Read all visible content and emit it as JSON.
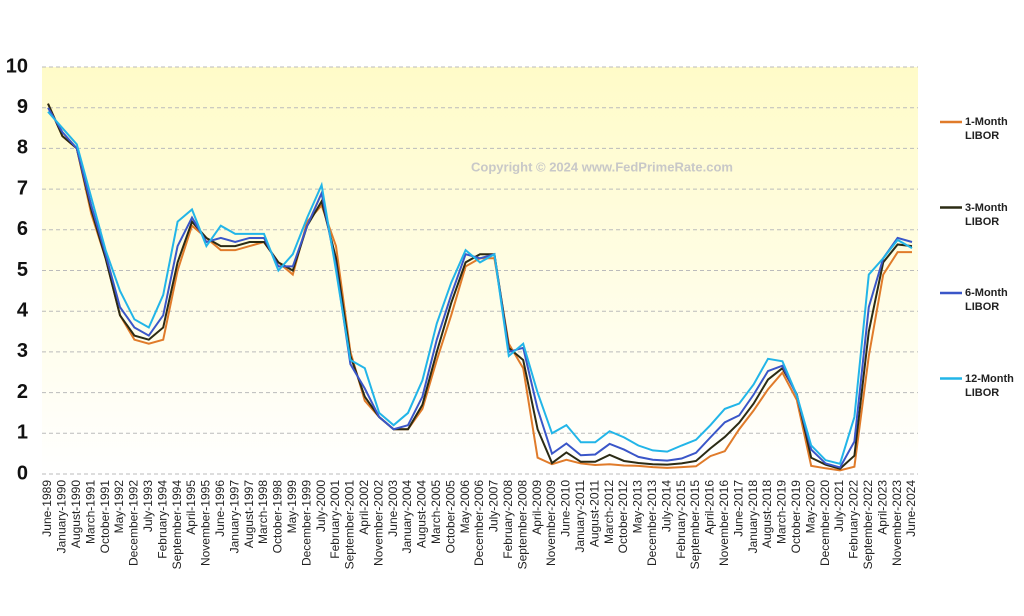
{
  "chart_data": {
    "type": "line",
    "annotation": "Copyright © 2024 www.FedPrimeRate.com",
    "categories": [
      "June-1989",
      "January-1990",
      "August-1990",
      "March-1991",
      "October-1991",
      "May-1992",
      "December-1992",
      "July-1993",
      "February-1994",
      "September-1994",
      "April-1995",
      "November-1995",
      "June-1996",
      "January-1997",
      "August-1997",
      "March-1998",
      "October-1998",
      "May-1999",
      "December-1999",
      "July-2000",
      "February-2001",
      "September-2001",
      "April-2002",
      "November-2002",
      "June-2003",
      "January-2004",
      "August-2004",
      "March-2005",
      "October-2005",
      "May-2006",
      "December-2006",
      "July-2007",
      "February-2008",
      "September-2008",
      "April-2009",
      "November-2009",
      "June-2010",
      "January-2011",
      "August-2011",
      "March-2012",
      "October-2012",
      "May-2013",
      "December-2013",
      "July-2014",
      "February-2015",
      "September-2015",
      "April-2016",
      "November-2016",
      "June-2017",
      "January-2018",
      "August-2018",
      "March-2019",
      "October-2019",
      "May-2020",
      "December-2020",
      "July-2021",
      "February-2022",
      "September-2022",
      "April-2023",
      "November-2023",
      "June-2024"
    ],
    "series": [
      {
        "name": "1-Month LIBOR",
        "color": "#e07b2a",
        "values": [
          9.1,
          8.3,
          8.0,
          6.4,
          5.3,
          3.9,
          3.3,
          3.2,
          3.3,
          5.0,
          6.1,
          5.8,
          5.5,
          5.5,
          5.6,
          5.7,
          5.2,
          4.9,
          6.2,
          6.6,
          5.6,
          3.0,
          1.8,
          1.4,
          1.1,
          1.1,
          1.6,
          2.8,
          3.9,
          5.1,
          5.3,
          5.3,
          3.2,
          2.6,
          0.4,
          0.24,
          0.35,
          0.26,
          0.22,
          0.24,
          0.21,
          0.2,
          0.17,
          0.15,
          0.17,
          0.19,
          0.44,
          0.56,
          1.1,
          1.56,
          2.08,
          2.49,
          1.82,
          0.2,
          0.14,
          0.09,
          0.18,
          2.9,
          4.9,
          5.45,
          5.45
        ]
      },
      {
        "name": "3-Month LIBOR",
        "color": "#2b2b14",
        "values": [
          9.1,
          8.3,
          8.0,
          6.5,
          5.3,
          3.9,
          3.4,
          3.3,
          3.6,
          5.2,
          6.2,
          5.8,
          5.6,
          5.6,
          5.7,
          5.7,
          5.2,
          5.0,
          6.1,
          6.7,
          5.3,
          2.9,
          1.9,
          1.4,
          1.1,
          1.1,
          1.7,
          3.0,
          4.2,
          5.2,
          5.4,
          5.4,
          3.1,
          2.8,
          1.1,
          0.27,
          0.53,
          0.3,
          0.3,
          0.47,
          0.32,
          0.27,
          0.24,
          0.23,
          0.26,
          0.32,
          0.63,
          0.91,
          1.26,
          1.73,
          2.32,
          2.6,
          1.96,
          0.4,
          0.23,
          0.13,
          0.45,
          3.5,
          5.2,
          5.64,
          5.6
        ]
      },
      {
        "name": "6-Month LIBOR",
        "color": "#3a56c8",
        "values": [
          9.0,
          8.4,
          8.0,
          6.6,
          5.4,
          4.1,
          3.6,
          3.4,
          3.9,
          5.6,
          6.3,
          5.7,
          5.8,
          5.7,
          5.8,
          5.8,
          5.1,
          5.1,
          6.1,
          6.9,
          5.1,
          2.7,
          2.1,
          1.4,
          1.1,
          1.2,
          1.9,
          3.3,
          4.4,
          5.4,
          5.3,
          5.4,
          3.0,
          3.1,
          1.6,
          0.5,
          0.75,
          0.46,
          0.48,
          0.74,
          0.6,
          0.42,
          0.35,
          0.33,
          0.38,
          0.52,
          0.9,
          1.27,
          1.44,
          1.95,
          2.53,
          2.66,
          1.93,
          0.6,
          0.26,
          0.16,
          0.8,
          4.1,
          5.3,
          5.8,
          5.7
        ]
      },
      {
        "name": "12-Month LIBOR",
        "color": "#22b5e8",
        "values": [
          8.9,
          8.5,
          8.1,
          6.8,
          5.5,
          4.5,
          3.8,
          3.6,
          4.4,
          6.2,
          6.5,
          5.6,
          6.1,
          5.9,
          5.9,
          5.9,
          5.0,
          5.4,
          6.3,
          7.1,
          5.0,
          2.8,
          2.6,
          1.5,
          1.2,
          1.5,
          2.3,
          3.7,
          4.7,
          5.5,
          5.2,
          5.4,
          2.9,
          3.2,
          2.0,
          1.0,
          1.2,
          0.78,
          0.78,
          1.05,
          0.9,
          0.7,
          0.58,
          0.55,
          0.7,
          0.84,
          1.2,
          1.6,
          1.73,
          2.2,
          2.83,
          2.77,
          1.94,
          0.7,
          0.34,
          0.25,
          1.4,
          4.9,
          5.3,
          5.75,
          5.55
        ]
      }
    ],
    "ylim": [
      0,
      10
    ],
    "yticks": [
      0,
      1,
      2,
      3,
      4,
      5,
      6,
      7,
      8,
      9,
      10
    ],
    "grid": true
  }
}
